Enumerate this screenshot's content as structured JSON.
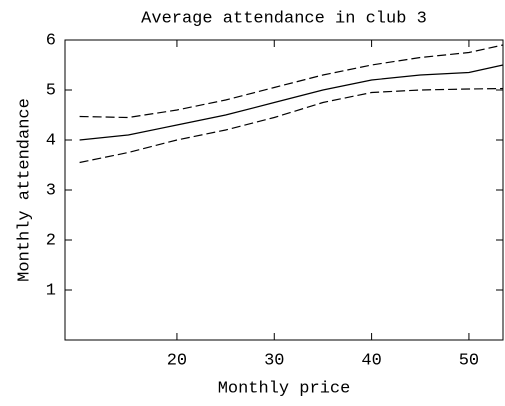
{
  "chart_data": {
    "type": "line",
    "title": "Average attendance in club 3",
    "x_label": "Monthly price",
    "y_label": "Monthly attendance",
    "x": [
      10,
      15,
      20,
      25,
      30,
      35,
      40,
      45,
      50,
      53.5
    ],
    "series": [
      {
        "color": "#000000",
        "dashed": false,
        "values": [
          4.0,
          4.1,
          4.3,
          4.5,
          4.75,
          5.0,
          5.2,
          5.3,
          5.35,
          5.5
        ]
      },
      {
        "color": "#000000",
        "dashed": true,
        "values": [
          4.47,
          4.45,
          4.6,
          4.8,
          5.05,
          5.3,
          5.5,
          5.65,
          5.75,
          5.9
        ]
      },
      {
        "color": "#000000",
        "dashed": true,
        "values": [
          3.55,
          3.75,
          4.0,
          4.2,
          4.45,
          4.75,
          4.95,
          5.0,
          5.02,
          5.03
        ]
      }
    ],
    "xlim": [
      8.5,
      53.5
    ],
    "xticks": [
      20,
      30,
      40,
      50
    ],
    "ylim": [
      0,
      6
    ],
    "yticks": [
      1,
      2,
      3,
      4,
      5,
      6
    ],
    "grid": false
  }
}
